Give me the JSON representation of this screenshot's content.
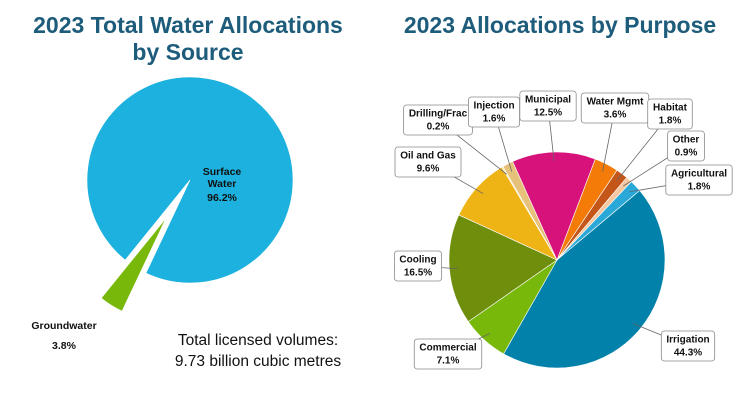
{
  "chart_data": [
    {
      "type": "pie",
      "title": "2023 Total Water Allocations by Source",
      "categories": [
        "Surface Water",
        "Groundwater"
      ],
      "values": [
        96.2,
        3.8
      ],
      "value_labels": [
        "96.2%",
        "3.8%"
      ],
      "colors": [
        "#1cb1de",
        "#78b80a"
      ],
      "annotations": [
        "Total licensed volumes:",
        "9.73 billion cubic metres"
      ]
    },
    {
      "type": "pie",
      "title": "2023 Allocations by Purpose",
      "categories": [
        "Agricultural",
        "Irrigation",
        "Commercial",
        "Cooling",
        "Oil and Gas",
        "Drilling/Frac",
        "Injection",
        "Municipal",
        "Water Mgmt",
        "Habitat",
        "Other"
      ],
      "values": [
        1.8,
        44.3,
        7.1,
        16.5,
        9.6,
        0.2,
        1.6,
        12.5,
        3.6,
        1.8,
        0.9
      ],
      "value_labels": [
        "1.8%",
        "44.3%",
        "7.1%",
        "16.5%",
        "9.6%",
        "0.2%",
        "1.6%",
        "12.5%",
        "3.6%",
        "1.8%",
        "0.9%"
      ],
      "colors": [
        "#2aa9d9",
        "#0281aa",
        "#78b80a",
        "#6e8e0c",
        "#eeb416",
        "#f3dca0",
        "#e5c17a",
        "#d8127b",
        "#f47b08",
        "#c4561a",
        "#f6c7a1"
      ]
    }
  ]
}
